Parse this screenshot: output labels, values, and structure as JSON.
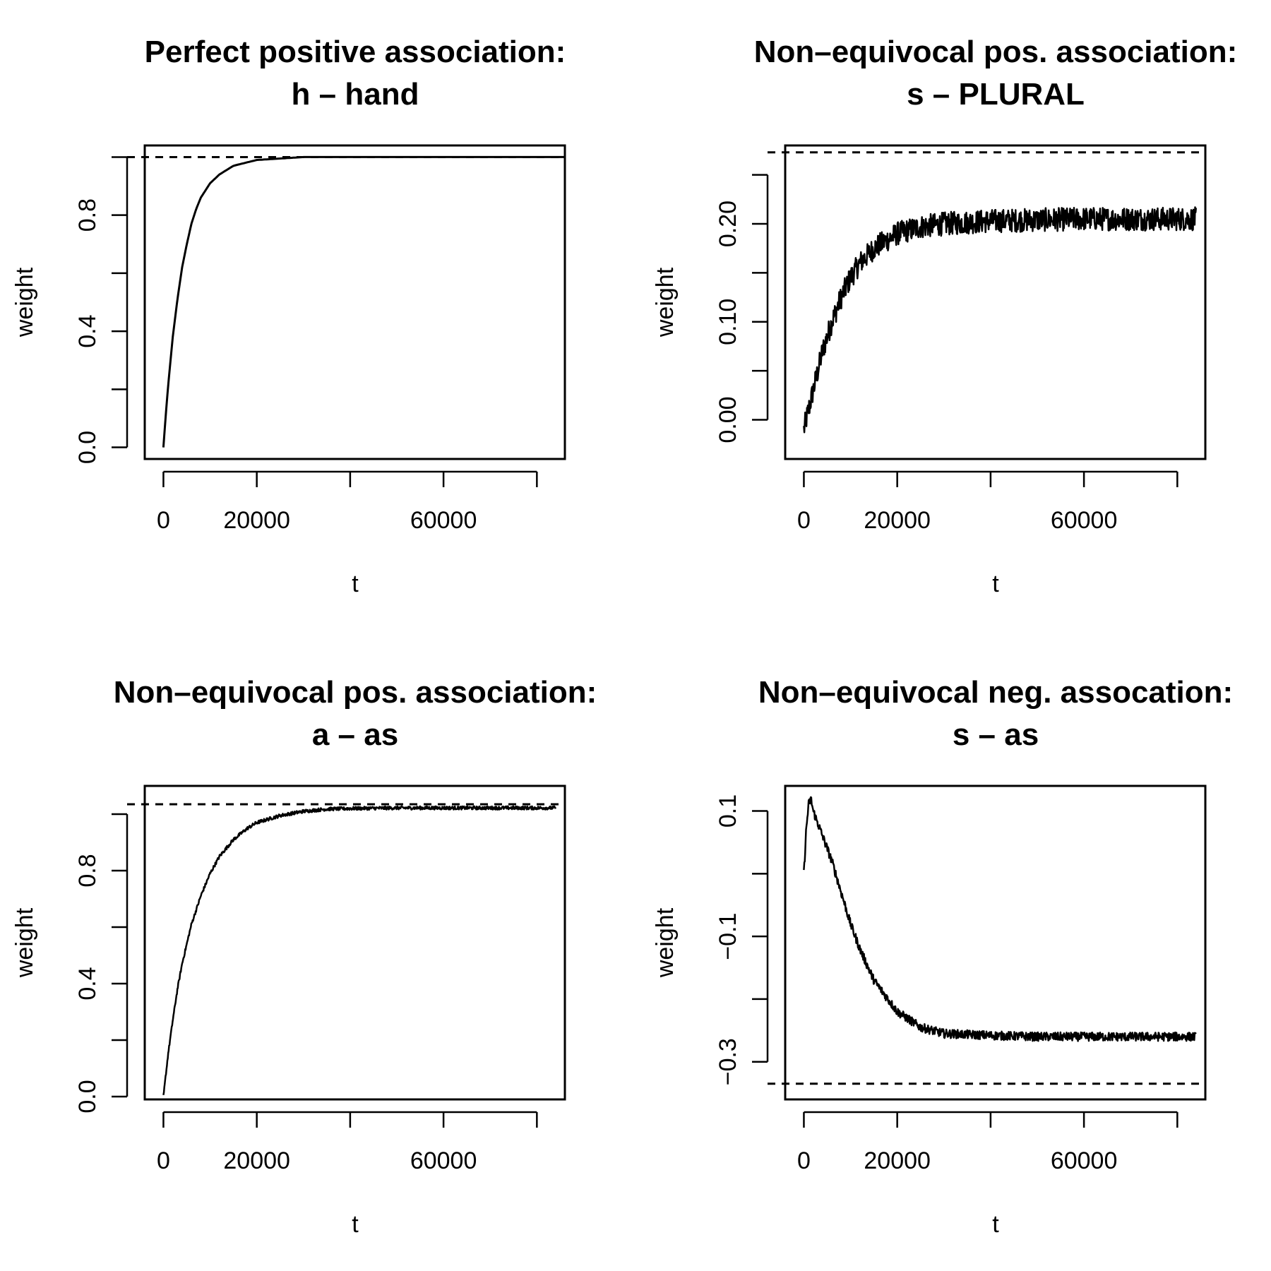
{
  "chart_data": [
    {
      "type": "line",
      "title_line1": "Perfect positive association:",
      "title_line2": "h – hand",
      "xlabel": "t",
      "ylabel": "weight",
      "xlim": [
        -4000,
        86000
      ],
      "ylim": [
        -0.04,
        1.04
      ],
      "xticks": [
        0,
        20000,
        40000,
        60000,
        80000
      ],
      "xtick_labels": [
        "0",
        "20000",
        "",
        "60000",
        ""
      ],
      "yticks": [
        0.0,
        0.2,
        0.4,
        0.6,
        0.8,
        1.0
      ],
      "ytick_labels": [
        "0.0",
        "",
        "0.4",
        "",
        "0.8",
        ""
      ],
      "reference_line": 1.0,
      "series": [
        {
          "x": [
            0,
            500,
            1000,
            2000,
            3000,
            4000,
            5000,
            6000,
            7000,
            8000,
            10000,
            12000,
            15000,
            20000,
            25000,
            30000,
            40000,
            50000,
            60000,
            70000,
            80000,
            86000
          ],
          "y": [
            0.0,
            0.11,
            0.21,
            0.38,
            0.51,
            0.62,
            0.7,
            0.77,
            0.82,
            0.86,
            0.91,
            0.94,
            0.97,
            0.99,
            0.995,
            1.0,
            1.0,
            1.0,
            1.0,
            1.0,
            1.0,
            1.0
          ]
        }
      ]
    },
    {
      "type": "line",
      "title_line1": "Non–equivocal pos. association:",
      "title_line2": "s – PLURAL",
      "xlabel": "t",
      "ylabel": "weight",
      "xlim": [
        -4000,
        86000
      ],
      "ylim": [
        -0.04,
        0.28
      ],
      "xticks": [
        0,
        20000,
        40000,
        60000,
        80000
      ],
      "xtick_labels": [
        "0",
        "20000",
        "",
        "60000",
        ""
      ],
      "yticks": [
        0.0,
        0.05,
        0.1,
        0.15,
        0.2,
        0.25
      ],
      "ytick_labels": [
        "0.00",
        "",
        "0.10",
        "",
        "0.20",
        ""
      ],
      "reference_line": 0.273,
      "series": [
        {
          "x": [
            0,
            1000,
            2000,
            3000,
            4000,
            6000,
            8000,
            10000,
            12000,
            15000,
            20000,
            25000,
            30000,
            40000,
            50000,
            60000,
            70000,
            84000
          ],
          "y": [
            -0.01,
            0.01,
            0.03,
            0.05,
            0.07,
            0.1,
            0.125,
            0.145,
            0.16,
            0.175,
            0.19,
            0.197,
            0.2,
            0.203,
            0.204,
            0.205,
            0.205,
            0.205
          ],
          "noise": 0.012
        }
      ]
    },
    {
      "type": "line",
      "title_line1": "Non–equivocal pos. association:",
      "title_line2": "a – as",
      "xlabel": "t",
      "ylabel": "weight",
      "xlim": [
        -4000,
        86000
      ],
      "ylim": [
        -0.01,
        1.1
      ],
      "xticks": [
        0,
        20000,
        40000,
        60000,
        80000
      ],
      "xtick_labels": [
        "0",
        "20000",
        "",
        "60000",
        ""
      ],
      "yticks": [
        0.0,
        0.2,
        0.4,
        0.6,
        0.8,
        1.0
      ],
      "ytick_labels": [
        "0.0",
        "",
        "0.4",
        "",
        "0.8",
        ""
      ],
      "reference_line": 1.035,
      "series": [
        {
          "x": [
            0,
            1000,
            2000,
            3000,
            4000,
            6000,
            8000,
            10000,
            12000,
            15000,
            18000,
            20000,
            25000,
            30000,
            35000,
            40000,
            50000,
            60000,
            70000,
            84000
          ],
          "y": [
            0.0,
            0.15,
            0.27,
            0.38,
            0.47,
            0.61,
            0.71,
            0.79,
            0.85,
            0.91,
            0.95,
            0.97,
            0.995,
            1.01,
            1.018,
            1.02,
            1.022,
            1.022,
            1.022,
            1.022
          ],
          "noise": 0.006
        }
      ]
    },
    {
      "type": "line",
      "title_line1": "Non–equivocal neg. assocation:",
      "title_line2": "s – as",
      "xlabel": "t",
      "ylabel": "weight",
      "xlim": [
        -4000,
        86000
      ],
      "ylim": [
        -0.36,
        0.14
      ],
      "xticks": [
        0,
        20000,
        40000,
        60000,
        80000
      ],
      "xtick_labels": [
        "0",
        "20000",
        "",
        "60000",
        ""
      ],
      "yticks": [
        -0.3,
        -0.2,
        -0.1,
        0.0,
        0.1
      ],
      "ytick_labels": [
        "−0.3",
        "",
        "−0.1",
        "",
        "0.1"
      ],
      "reference_line": -0.335,
      "series": [
        {
          "x": [
            0,
            500,
            1000,
            1500,
            2000,
            3000,
            4000,
            6000,
            8000,
            10000,
            12000,
            15000,
            20000,
            25000,
            30000,
            40000,
            50000,
            60000,
            70000,
            84000
          ],
          "y": [
            0.0,
            0.07,
            0.11,
            0.12,
            0.1,
            0.08,
            0.06,
            0.02,
            -0.03,
            -0.08,
            -0.12,
            -0.17,
            -0.22,
            -0.245,
            -0.255,
            -0.258,
            -0.26,
            -0.26,
            -0.26,
            -0.26
          ],
          "noise": 0.007
        }
      ]
    }
  ]
}
